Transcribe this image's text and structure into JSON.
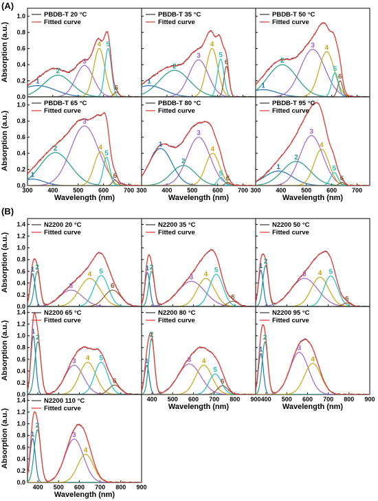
{
  "sections": [
    {
      "letter": "(A)",
      "ylabel": "Absorption (a.u.)",
      "xlabel": "Wavelength (nm)",
      "ylim": [
        0,
        1.1
      ],
      "yticks": [
        0.0,
        0.2,
        0.4,
        0.6,
        0.8,
        1.0
      ],
      "xlim": [
        300,
        750
      ],
      "xticks": [
        300,
        400,
        500,
        600,
        700
      ],
      "fitted_label": "Fitted curve",
      "panels": [
        {
          "label": "PBDB-T 20 °C",
          "peaks": [
            [
              1,
              340,
              0.14,
              70
            ],
            [
              2,
              420,
              0.27,
              55
            ],
            [
              3,
              525,
              0.39,
              35
            ],
            [
              4,
              583,
              0.6,
              22
            ],
            [
              5,
              618,
              0.6,
              13
            ],
            [
              6,
              650,
              0.06,
              10
            ]
          ]
        },
        {
          "label": "PBDB-T 35 °C",
          "peaks": [
            [
              1,
              330,
              0.14,
              60
            ],
            [
              2,
              430,
              0.33,
              60
            ],
            [
              3,
              525,
              0.46,
              38
            ],
            [
              4,
              578,
              0.6,
              23
            ],
            [
              5,
              612,
              0.47,
              13
            ],
            [
              6,
              635,
              0.38,
              10
            ]
          ]
        },
        {
          "label": "PBDB-T 50 °C",
          "peaks": [
            [
              1,
              330,
              0.09,
              55
            ],
            [
              2,
              405,
              0.4,
              58
            ],
            [
              3,
              525,
              0.59,
              48
            ],
            [
              4,
              580,
              0.56,
              30
            ],
            [
              5,
              613,
              0.3,
              13
            ],
            [
              6,
              633,
              0.2,
              10
            ]
          ]
        },
        {
          "label": "PBDB-T 65 °C",
          "peaks": [
            [
              1,
              320,
              0.08,
              45
            ],
            [
              2,
              410,
              0.41,
              60
            ],
            [
              3,
              525,
              0.74,
              55
            ],
            [
              4,
              588,
              0.42,
              25
            ],
            [
              5,
              612,
              0.35,
              13
            ],
            [
              6,
              645,
              0.07,
              10
            ]
          ]
        },
        {
          "label": "PBDB-T 80 °C",
          "peaks": [
            [
              1,
              375,
              0.46,
              45
            ],
            [
              2,
              465,
              0.25,
              48
            ],
            [
              3,
              525,
              0.6,
              45
            ],
            [
              4,
              580,
              0.4,
              28
            ],
            [
              5,
              613,
              0.1,
              13
            ],
            [
              6,
              640,
              0.04,
              10
            ]
          ]
        },
        {
          "label": "PBDB-T 95 °C",
          "peaks": [
            [
              1,
              390,
              0.18,
              55
            ],
            [
              2,
              460,
              0.3,
              55
            ],
            [
              3,
              520,
              0.62,
              45
            ],
            [
              4,
              560,
              0.45,
              30
            ],
            [
              5,
              610,
              0.16,
              15
            ],
            [
              6,
              640,
              0.04,
              10
            ]
          ]
        }
      ]
    },
    {
      "letter": "(B)",
      "ylabel": "Absorption (a.u.)",
      "xlabel": "Wavelength (nm)",
      "ylim": [
        0,
        1.5
      ],
      "yticks": [
        0.0,
        0.2,
        0.4,
        0.6,
        0.8,
        1.0,
        1.2,
        1.4
      ],
      "xlim": [
        350,
        900
      ],
      "xticks": [
        400,
        500,
        600,
        700,
        800,
        900
      ],
      "fitted_label": "Fitted curve",
      "panels": [
        {
          "label": "N2200 20 °C",
          "peaks": [
            [
              1,
              375,
              0.56,
              12
            ],
            [
              2,
              397,
              0.6,
              14
            ],
            [
              3,
              560,
              0.28,
              55
            ],
            [
              4,
              650,
              0.48,
              50
            ],
            [
              5,
              705,
              0.53,
              35
            ],
            [
              6,
              760,
              0.28,
              40
            ]
          ]
        },
        {
          "label": "N2200 35 °C",
          "peaks": [
            [
              1,
              378,
              0.58,
              12
            ],
            [
              2,
              398,
              0.6,
              14
            ],
            [
              3,
              590,
              0.43,
              65
            ],
            [
              4,
              660,
              0.48,
              42
            ],
            [
              5,
              710,
              0.55,
              33
            ],
            [
              6,
              790,
              0.09,
              25
            ]
          ]
        },
        {
          "label": "N2200 50 °C",
          "peaks": [
            [
              1,
              375,
              0.62,
              12
            ],
            [
              2,
              398,
              0.7,
              14
            ],
            [
              3,
              585,
              0.48,
              65
            ],
            [
              4,
              660,
              0.5,
              42
            ],
            [
              5,
              712,
              0.52,
              33
            ],
            [
              6,
              790,
              0.06,
              20
            ]
          ]
        },
        {
          "label": "N2200 65 °C",
          "peaks": [
            [
              1,
              378,
              1.0,
              12
            ],
            [
              2,
              400,
              0.9,
              15
            ],
            [
              3,
              575,
              0.5,
              45
            ],
            [
              4,
              640,
              0.55,
              40
            ],
            [
              5,
              705,
              0.55,
              32
            ],
            [
              6,
              770,
              0.16,
              28
            ]
          ]
        },
        {
          "label": "N2200 80 °C",
          "peaks": [
            [
              1,
              375,
              0.5,
              12
            ],
            [
              2,
              398,
              0.95,
              14
            ],
            [
              3,
              580,
              0.52,
              55
            ],
            [
              4,
              650,
              0.5,
              40
            ],
            [
              5,
              705,
              0.35,
              30
            ],
            [
              6,
              740,
              0.15,
              25
            ]
          ]
        },
        {
          "label": "N2200 95 °C",
          "peaks": [
            [
              1,
              375,
              0.7,
              12
            ],
            [
              2,
              395,
              0.9,
              14
            ],
            [
              3,
              560,
              0.72,
              45
            ],
            [
              4,
              625,
              0.53,
              40
            ]
          ]
        },
        {
          "label": "N2200 110 °C",
          "peaks": [
            [
              1,
              375,
              0.75,
              13
            ],
            [
              2,
              398,
              0.9,
              16
            ],
            [
              3,
              575,
              0.74,
              45
            ],
            [
              4,
              630,
              0.48,
              38
            ]
          ]
        }
      ]
    }
  ],
  "colors": {
    "raw": "#333333",
    "fitted": "#e8403a",
    "peak1": "#1e6fb5",
    "peak2": "#1f9b7f",
    "peak3": "#9e62c7",
    "peak4": "#c9a511",
    "peak5": "#20bfbf",
    "peak6": "#8a5a36"
  }
}
